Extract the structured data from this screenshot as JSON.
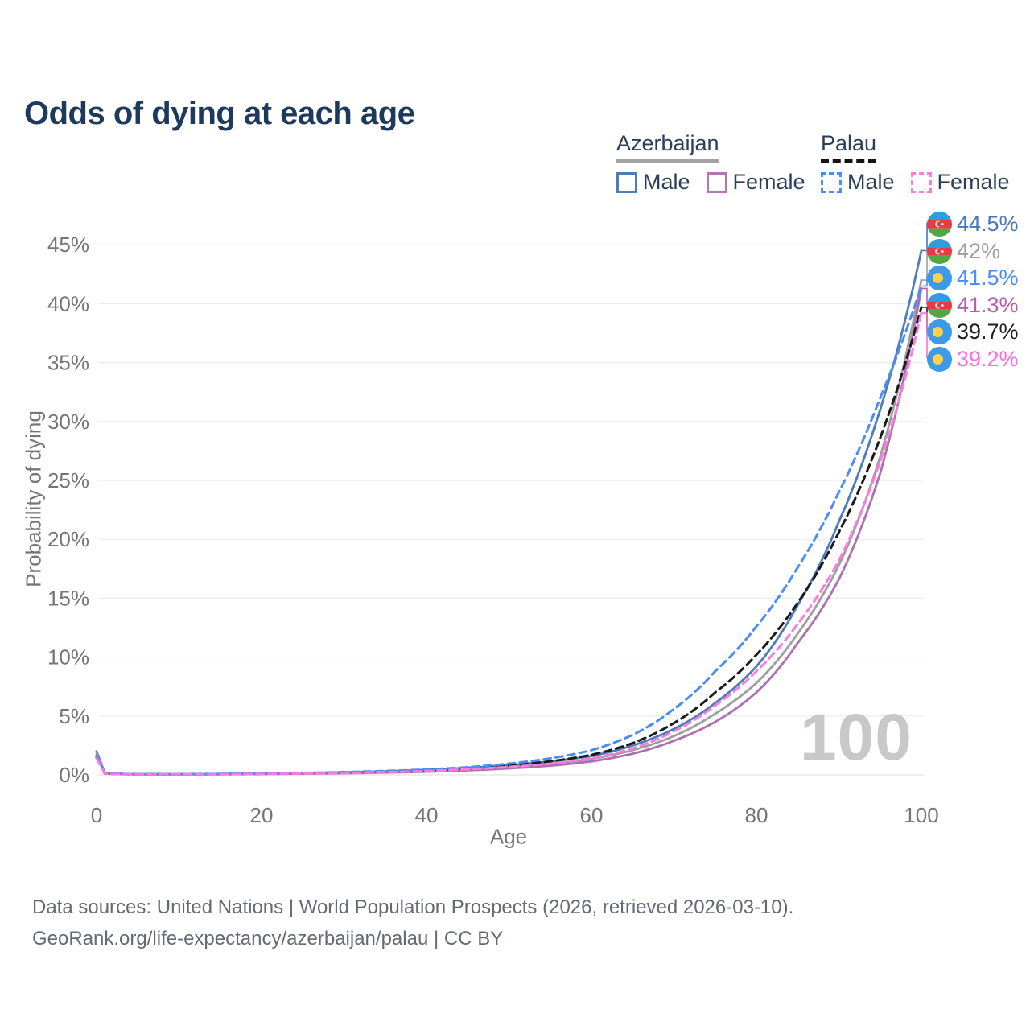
{
  "title": "Odds of dying at each age",
  "watermark": "100",
  "legend": {
    "groups": [
      {
        "country": "Azerbaijan",
        "line_color": "#a3a3a3",
        "line_style": "solid",
        "items": [
          {
            "label": "Male",
            "color": "#4d7cb8",
            "style": "solid"
          },
          {
            "label": "Female",
            "color": "#b474b8",
            "style": "solid"
          }
        ]
      },
      {
        "country": "Palau",
        "line_color": "#141414",
        "line_style": "dashed",
        "items": [
          {
            "label": "Male",
            "color": "#4b8cf5",
            "style": "dashed"
          },
          {
            "label": "Female",
            "color": "#fb7ce0",
            "style": "dashed"
          }
        ]
      }
    ]
  },
  "axis": {
    "x_title": "Age",
    "y_title": "Probability of dying"
  },
  "chart_data": {
    "type": "line",
    "title": "Odds of dying at each age",
    "xlabel": "Age",
    "ylabel": "Probability of dying",
    "xlim": [
      0,
      100
    ],
    "ylim_pct": [
      0,
      47
    ],
    "xticks": [
      0,
      20,
      40,
      60,
      80,
      100
    ],
    "ytick_labels": [
      "0%",
      "5%",
      "10%",
      "15%",
      "20%",
      "25%",
      "30%",
      "35%",
      "40%",
      "45%"
    ],
    "grid": "horizontal",
    "legend_position": "top-right",
    "anchor_ages": [
      0,
      1,
      5,
      15,
      25,
      35,
      45,
      55,
      60,
      65,
      70,
      75,
      80,
      85,
      90,
      95,
      100
    ],
    "series": [
      {
        "id": "az_male",
        "name": "Azerbaijan Male",
        "color": "#4d7cb8",
        "dash": "solid",
        "end_value_pct": 44.5,
        "values_pct": [
          2.0,
          0.15,
          0.06,
          0.08,
          0.16,
          0.3,
          0.6,
          1.15,
          1.6,
          2.5,
          3.9,
          6.1,
          9.2,
          14.4,
          21.5,
          31.0,
          44.5
        ]
      },
      {
        "id": "az_both",
        "name": "Azerbaijan (both sexes)",
        "color": "#9e9e9e",
        "dash": "solid",
        "end_value_pct": 42,
        "values_pct": [
          1.85,
          0.13,
          0.05,
          0.06,
          0.13,
          0.24,
          0.48,
          0.95,
          1.35,
          2.1,
          3.3,
          5.2,
          7.8,
          12.0,
          17.8,
          27.0,
          42.0
        ]
      },
      {
        "id": "az_female",
        "name": "Azerbaijan Female",
        "color": "#ad6fb0",
        "dash": "solid",
        "end_value_pct": 41.3,
        "values_pct": [
          1.7,
          0.12,
          0.04,
          0.05,
          0.1,
          0.19,
          0.38,
          0.78,
          1.15,
          1.8,
          2.9,
          4.5,
          7.0,
          11.2,
          16.6,
          25.6,
          41.3
        ]
      },
      {
        "id": "palau_both",
        "name": "Palau (both sexes)",
        "color": "#1a1a1a",
        "dash": "dashed",
        "end_value_pct": 39.7,
        "values_pct": [
          1.5,
          0.11,
          0.045,
          0.07,
          0.15,
          0.28,
          0.55,
          1.15,
          1.7,
          2.7,
          4.4,
          7.0,
          10.2,
          14.6,
          20.6,
          28.6,
          39.7
        ]
      },
      {
        "id": "palau_male",
        "name": "Palau Male",
        "color": "#4b8cf5",
        "dash": "dashed",
        "end_value_pct": 41.5,
        "values_pct": [
          1.6,
          0.12,
          0.05,
          0.08,
          0.17,
          0.33,
          0.65,
          1.4,
          2.1,
          3.4,
          5.6,
          8.8,
          12.6,
          17.6,
          24.0,
          32.0,
          41.5
        ]
      },
      {
        "id": "palau_female",
        "name": "Palau Female",
        "color": "#fb7ce0",
        "dash": "dashed",
        "end_value_pct": 39.2,
        "values_pct": [
          1.4,
          0.1,
          0.04,
          0.06,
          0.12,
          0.23,
          0.48,
          0.95,
          1.4,
          2.25,
          3.7,
          5.9,
          8.8,
          12.8,
          18.2,
          26.6,
          39.2
        ]
      }
    ]
  },
  "end_labels": [
    {
      "value": "44.5%",
      "color": "#4677bb",
      "flag": "azerbaijan",
      "series": "az_male"
    },
    {
      "value": "42%",
      "color": "#9e9e9e",
      "flag": "azerbaijan",
      "series": "az_both"
    },
    {
      "value": "41.5%",
      "color": "#4b8cf5",
      "flag": "palau",
      "series": "palau_male"
    },
    {
      "value": "41.3%",
      "color": "#b25fb2",
      "flag": "azerbaijan",
      "series": "az_female"
    },
    {
      "value": "39.7%",
      "color": "#1f1f1f",
      "flag": "palau",
      "series": "palau_both"
    },
    {
      "value": "39.2%",
      "color": "#fb6edd",
      "flag": "palau",
      "series": "palau_female"
    }
  ],
  "colors": {
    "title": "#1d3a5e",
    "axis_text": "#757575",
    "gridline": "#ececec",
    "watermark": "#c8c8c8",
    "az_flag": {
      "blue": "#2f9ce0",
      "red": "#e83a45",
      "green": "#55a545"
    },
    "palau_flag": {
      "blue": "#3d9ae8",
      "yellow": "#ffd24d"
    }
  },
  "footer": {
    "line1": "Data sources: United Nations | World Population Prospects (2026, retrieved 2026-03-10).",
    "line2": "GeoRank.org/life-expectancy/azerbaijan/palau | CC BY"
  }
}
